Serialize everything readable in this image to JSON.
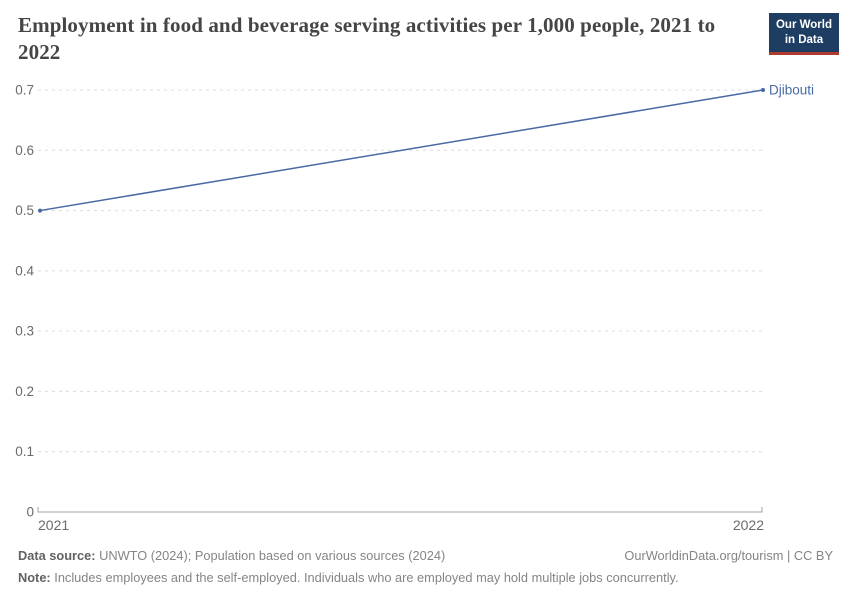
{
  "header": {
    "title": "Employment in food and beverage serving activities per 1,000 people, 2021 to 2022",
    "logo": {
      "line1": "Our World",
      "line2": "in Data"
    }
  },
  "chart_data": {
    "type": "line",
    "title": "Employment in food and beverage serving activities per 1,000 people, 2021 to 2022",
    "x": [
      2021,
      2022
    ],
    "series": [
      {
        "name": "Djibouti",
        "values": [
          0.5,
          0.7
        ],
        "color": "#4669a5"
      }
    ],
    "xticks": [
      2021,
      2022
    ],
    "yticks": [
      0,
      0.1,
      0.2,
      0.3,
      0.4,
      0.5,
      0.6,
      0.7
    ],
    "ytick_labels": [
      "0",
      "0.1",
      "0.2",
      "0.3",
      "0.4",
      "0.5",
      "0.6",
      "0.7"
    ],
    "ylim": [
      0,
      0.7
    ],
    "xlabel": "",
    "ylabel": "",
    "grid": "horizontal-dashed",
    "legend": "end-of-line-label",
    "colors": {
      "line": "#4669a5",
      "gridline": "#dcdcdc",
      "axis": "#a0a0a0",
      "tick_label": "#6b6b6b"
    }
  },
  "footer": {
    "source_label": "Data source:",
    "source_text": " UNWTO (2024); Population based on various sources (2024)",
    "attribution": "OurWorldinData.org/tourism | CC BY",
    "note_label": "Note:",
    "note_text": " Includes employees and the self-employed. Individuals who are employed may hold multiple jobs concurrently."
  },
  "logo_colors": {
    "background": "#1d3d63",
    "accent_bar": "#b13b2f"
  }
}
